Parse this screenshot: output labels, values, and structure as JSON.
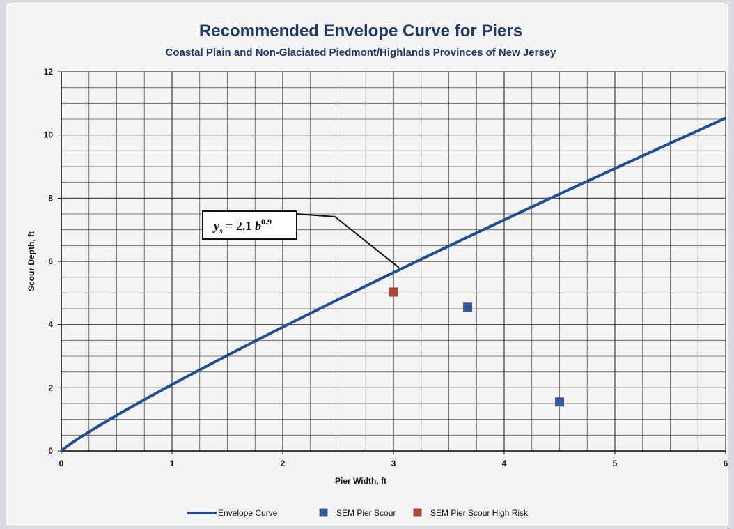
{
  "chart_data": {
    "type": "line",
    "title": "Recommended Envelope Curve for Piers",
    "subtitle": "Coastal Plain and Non-Glaciated Piedmont/Highlands Provinces of New Jersey",
    "xlabel": "Pier Width, ft",
    "ylabel": "Scour Depth, ft",
    "xlim": [
      0,
      6
    ],
    "ylim": [
      0,
      12
    ],
    "x_ticks": [
      "0",
      "1",
      "2",
      "3",
      "4",
      "5",
      "6"
    ],
    "y_ticks": [
      "0",
      "2",
      "4",
      "6",
      "8",
      "10",
      "12"
    ],
    "grid": true,
    "legend_position": "bottom",
    "annotation": {
      "text_main": "y",
      "text_sub": "s",
      "text_eq": " = 2.1 b",
      "text_sup": "0.9",
      "points_to": [
        3.05,
        5.8
      ]
    },
    "series": [
      {
        "name": "Envelope Curve",
        "kind": "line",
        "color": "#1f4e99",
        "formula": "y = 2.1 * x^0.9",
        "coefficient": 2.1,
        "exponent": 0.9,
        "x_range": [
          0,
          6
        ]
      },
      {
        "name": "SEM Pier Scour",
        "kind": "scatter",
        "color": "#2e5aa8",
        "x": [
          3.67,
          4.5
        ],
        "y": [
          4.55,
          1.55
        ]
      },
      {
        "name": "SEM Pier Scour High Risk",
        "kind": "scatter",
        "color": "#b8412f",
        "x": [
          3.0
        ],
        "y": [
          5.03
        ]
      }
    ]
  }
}
